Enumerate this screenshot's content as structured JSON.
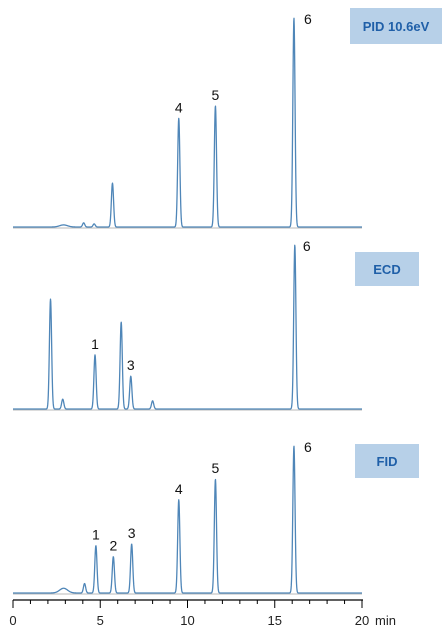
{
  "chart_data": {
    "type": "line",
    "xlabel": "min",
    "xlim": [
      0,
      20
    ],
    "x_ticks": [
      0,
      5,
      10,
      15,
      20
    ],
    "x_tick_labels": [
      "0",
      "5",
      "10",
      "15",
      "20"
    ],
    "trace_color": "#4f86b8",
    "detector_box_color": "#b7d0e8",
    "detector_text_color": "#1f5fa8",
    "panels": [
      {
        "detector": "PID 10.6eV",
        "peaks": [
          {
            "t": 4.05,
            "h": 0.02,
            "label": ""
          },
          {
            "t": 4.65,
            "h": 0.015,
            "label": ""
          },
          {
            "t": 5.7,
            "h": 0.21,
            "label": ""
          },
          {
            "t": 9.5,
            "h": 0.52,
            "label": "4"
          },
          {
            "t": 11.6,
            "h": 0.58,
            "label": "5"
          },
          {
            "t": 16.1,
            "h": 1.0,
            "label": "6"
          }
        ],
        "baseline_bumps": [
          {
            "t": 2.9,
            "h": 0.01
          }
        ]
      },
      {
        "detector": "ECD",
        "peaks": [
          {
            "t": 2.15,
            "h": 0.67,
            "label": ""
          },
          {
            "t": 2.85,
            "h": 0.06,
            "label": ""
          },
          {
            "t": 4.7,
            "h": 0.33,
            "label": "1"
          },
          {
            "t": 6.2,
            "h": 0.53,
            "label": ""
          },
          {
            "t": 6.75,
            "h": 0.2,
            "label": "3"
          },
          {
            "t": 8.0,
            "h": 0.05,
            "label": ""
          },
          {
            "t": 16.15,
            "h": 1.0,
            "label": "6"
          }
        ],
        "baseline_bumps": []
      },
      {
        "detector": "FID",
        "peaks": [
          {
            "t": 4.1,
            "h": 0.06,
            "label": ""
          },
          {
            "t": 4.75,
            "h": 0.3,
            "label": "1"
          },
          {
            "t": 5.75,
            "h": 0.23,
            "label": "2"
          },
          {
            "t": 6.8,
            "h": 0.31,
            "label": "3"
          },
          {
            "t": 9.5,
            "h": 0.59,
            "label": "4"
          },
          {
            "t": 11.6,
            "h": 0.72,
            "label": "5"
          },
          {
            "t": 16.1,
            "h": 0.93,
            "label": "6"
          }
        ],
        "baseline_bumps": [
          {
            "t": 2.9,
            "h": 0.03
          }
        ]
      }
    ]
  }
}
